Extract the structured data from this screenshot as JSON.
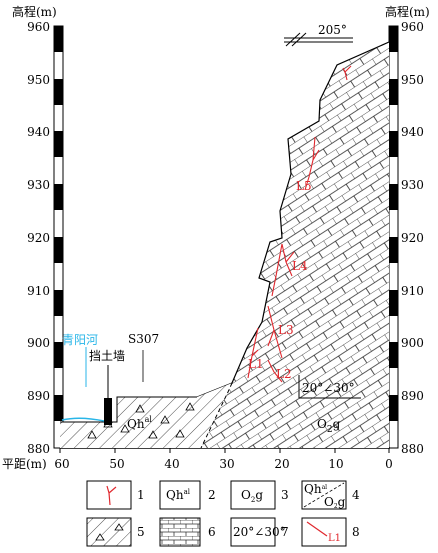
{
  "axes": {
    "left_title": "高程(m)",
    "right_title": "高程(m)",
    "bottom_title": "平距(m)",
    "elevation_ticks": [
      "960",
      "950",
      "940",
      "930",
      "920",
      "910",
      "900",
      "890",
      "880"
    ],
    "distance_ticks": [
      "60",
      "50",
      "40",
      "30",
      "20",
      "10",
      "0"
    ]
  },
  "annotations": {
    "strike": "205°",
    "river": "青阳河",
    "road": "S307",
    "wall": "挡土墙",
    "qh_label": "Qh",
    "qh_sup": "al",
    "o2g_main": "O",
    "o2g_sub": "2",
    "o2g_tail": "g",
    "dip": "20°∠30°",
    "cracks": [
      "L1",
      "L2",
      "L3",
      "L4",
      "L5"
    ]
  },
  "legend": {
    "numbers": [
      "1",
      "2",
      "3",
      "4",
      "5",
      "6",
      "7",
      "8"
    ],
    "qh_text": "Qh",
    "qh_sup": "al",
    "o2g_o": "O",
    "o2g_2": "2",
    "o2g_g": "g",
    "dip": "20°∠30°",
    "crack": "L1"
  },
  "colors": {
    "crack": "#e0282e",
    "river": "#29b6e8",
    "scale_black": "#000000"
  }
}
